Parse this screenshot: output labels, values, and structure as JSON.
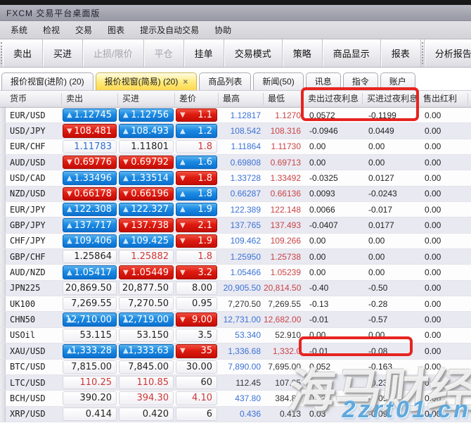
{
  "window": {
    "title": "FXCM 交易平台桌面版"
  },
  "menu": {
    "items": [
      "系统",
      "检视",
      "交易",
      "图表",
      "提示及自动交易",
      "协助"
    ]
  },
  "toolbar": {
    "buttons": [
      {
        "label": "卖出",
        "enabled": true
      },
      {
        "label": "买进",
        "enabled": true
      },
      {
        "label": "止损/限价",
        "enabled": false
      },
      {
        "label": "平仓",
        "enabled": false
      },
      {
        "label": "挂单",
        "enabled": true
      },
      {
        "label": "交易模式",
        "enabled": true
      },
      {
        "label": "策略",
        "enabled": true
      },
      {
        "label": "商品显示",
        "enabled": true
      },
      {
        "label": "报表",
        "enabled": true
      }
    ],
    "detached_button": {
      "label": "分析报告",
      "enabled": true
    }
  },
  "tabs": [
    {
      "label": "报价视窗(进阶) (20)",
      "active": false,
      "closable": false
    },
    {
      "label": "报价视窗(简易) (20)",
      "active": true,
      "closable": true
    },
    {
      "label": "商品列表",
      "active": false,
      "closable": false
    },
    {
      "label": "新闻(50)",
      "active": false,
      "closable": false
    },
    {
      "label": "讯息",
      "active": false,
      "closable": false
    },
    {
      "label": "指令",
      "active": false,
      "closable": false
    },
    {
      "label": "账户",
      "active": false,
      "closable": false
    }
  ],
  "close_icon": "×",
  "arrows": {
    "up": "▲",
    "down": "▼"
  },
  "table": {
    "columns": [
      "货币",
      "卖出",
      "买进",
      "差价",
      "最高",
      "最低",
      "卖出过夜利息",
      "买进过夜利息",
      "售出红利"
    ],
    "rows": [
      {
        "symbol": "EUR/USD",
        "sell": "1.12745",
        "sell_state": "up",
        "buy": "1.12756",
        "buy_state": "up",
        "spread": "1.1",
        "spread_state": "down",
        "high": "1.12817",
        "high_color": "blue",
        "low": "1.1270",
        "low_color": "red",
        "sell_roll": "0.0572",
        "buy_roll": "-0.1199",
        "dividend": "0.00"
      },
      {
        "symbol": "USD/JPY",
        "sell": "108.481",
        "sell_state": "down",
        "buy": "108.493",
        "buy_state": "up",
        "spread": "1.2",
        "spread_state": "up",
        "high": "108.542",
        "high_color": "blue",
        "low": "108.316",
        "low_color": "red",
        "sell_roll": "-0.0946",
        "buy_roll": "0.0449",
        "dividend": "0.00"
      },
      {
        "symbol": "EUR/CHF",
        "sell": "1.11783",
        "sell_state": "flat-blue",
        "buy": "1.11801",
        "buy_state": "flat-black",
        "spread": "1.8",
        "spread_state": "flat-red",
        "high": "1.11864",
        "high_color": "blue",
        "low": "1.11730",
        "low_color": "red",
        "sell_roll": "0.00",
        "buy_roll": "0.00",
        "dividend": "0.00"
      },
      {
        "symbol": "AUD/USD",
        "sell": "0.69776",
        "sell_state": "down",
        "buy": "0.69792",
        "buy_state": "down",
        "spread": "1.6",
        "spread_state": "up",
        "high": "0.69808",
        "high_color": "blue",
        "low": "0.69713",
        "low_color": "red",
        "sell_roll": "0.00",
        "buy_roll": "0.00",
        "dividend": "0.00"
      },
      {
        "symbol": "USD/CAD",
        "sell": "1.33496",
        "sell_state": "up",
        "buy": "1.33514",
        "buy_state": "up",
        "spread": "1.8",
        "spread_state": "down",
        "high": "1.33728",
        "high_color": "blue",
        "low": "1.33492",
        "low_color": "red",
        "sell_roll": "-0.0325",
        "buy_roll": "0.0127",
        "dividend": "0.00"
      },
      {
        "symbol": "NZD/USD",
        "sell": "0.66178",
        "sell_state": "down",
        "buy": "0.66196",
        "buy_state": "down",
        "spread": "1.8",
        "spread_state": "up",
        "high": "0.66287",
        "high_color": "blue",
        "low": "0.66136",
        "low_color": "red",
        "sell_roll": "0.0093",
        "buy_roll": "-0.0243",
        "dividend": "0.00"
      },
      {
        "symbol": "EUR/JPY",
        "sell": "122.308",
        "sell_state": "up",
        "buy": "122.327",
        "buy_state": "up",
        "spread": "1.9",
        "spread_state": "up",
        "high": "122.389",
        "high_color": "blue",
        "low": "122.148",
        "low_color": "red",
        "sell_roll": "0.0066",
        "buy_roll": "-0.017",
        "dividend": "0.00"
      },
      {
        "symbol": "GBP/JPY",
        "sell": "137.717",
        "sell_state": "up",
        "buy": "137.738",
        "buy_state": "down",
        "spread": "2.1",
        "spread_state": "down",
        "high": "137.765",
        "high_color": "blue",
        "low": "137.493",
        "low_color": "red",
        "sell_roll": "-0.0407",
        "buy_roll": "0.0177",
        "dividend": "0.00"
      },
      {
        "symbol": "CHF/JPY",
        "sell": "109.406",
        "sell_state": "up",
        "buy": "109.425",
        "buy_state": "up",
        "spread": "1.9",
        "spread_state": "down",
        "high": "109.462",
        "high_color": "blue",
        "low": "109.266",
        "low_color": "red",
        "sell_roll": "0.00",
        "buy_roll": "0.00",
        "dividend": "0.00"
      },
      {
        "symbol": "GBP/CHF",
        "sell": "1.25864",
        "sell_state": "flat-black",
        "buy": "1.25882",
        "buy_state": "flat-red",
        "spread": "1.8",
        "spread_state": "flat-red",
        "high": "1.25950",
        "high_color": "blue",
        "low": "1.25738",
        "low_color": "red",
        "sell_roll": "0.00",
        "buy_roll": "0.00",
        "dividend": "0.00"
      },
      {
        "symbol": "AUD/NZD",
        "sell": "1.05417",
        "sell_state": "up",
        "buy": "1.05449",
        "buy_state": "down",
        "spread": "3.2",
        "spread_state": "down",
        "high": "1.05466",
        "high_color": "blue",
        "low": "1.05239",
        "low_color": "red",
        "sell_roll": "0.00",
        "buy_roll": "0.00",
        "dividend": "0.00"
      },
      {
        "symbol": "JPN225",
        "sell": "20,869.50",
        "sell_state": "flat-black",
        "buy": "20,877.50",
        "buy_state": "flat-black",
        "spread": "8.00",
        "spread_state": "flat-black",
        "high": "20,905.50",
        "high_color": "blue",
        "low": "20,814.50",
        "low_color": "red",
        "sell_roll": "-0.40",
        "buy_roll": "-0.50",
        "dividend": "0.00"
      },
      {
        "symbol": "UK100",
        "sell": "7,269.55",
        "sell_state": "flat-black",
        "buy": "7,270.50",
        "buy_state": "flat-black",
        "spread": "0.95",
        "spread_state": "flat-black",
        "high": "7,270.50",
        "high_color": "black",
        "low": "7,269.55",
        "low_color": "black",
        "sell_roll": "-0.13",
        "buy_roll": "-0.28",
        "dividend": "0.00"
      },
      {
        "symbol": "CHN50",
        "sell": "12,710.00",
        "sell_state": "up",
        "buy": "12,719.00",
        "buy_state": "up",
        "spread": "9.00",
        "spread_state": "down",
        "high": "12,731.00",
        "high_color": "blue",
        "low": "12,682.00",
        "low_color": "red",
        "sell_roll": "-0.01",
        "buy_roll": "-0.57",
        "dividend": "0.00"
      },
      {
        "symbol": "USOil",
        "sell": "53.115",
        "sell_state": "flat-black",
        "buy": "53.150",
        "buy_state": "flat-black",
        "spread": "3.5",
        "spread_state": "flat-black",
        "high": "53.340",
        "high_color": "blue",
        "low": "52.910",
        "low_color": "black",
        "sell_roll": "0.00",
        "buy_roll": "0.00",
        "dividend": "0.00"
      },
      {
        "symbol": "XAU/USD",
        "sell": "1,333.28",
        "sell_state": "up",
        "buy": "1,333.63",
        "buy_state": "up",
        "spread": "35",
        "spread_state": "down",
        "high": "1,336.68",
        "high_color": "blue",
        "low": "1,332.0",
        "low_color": "red",
        "sell_roll": "-0.01",
        "buy_roll": "-0.08",
        "dividend": "0.00"
      },
      {
        "symbol": "BTC/USD",
        "sell": "7,815.00",
        "sell_state": "flat-black",
        "buy": "7,845.00",
        "buy_state": "flat-black",
        "spread": "30.00",
        "spread_state": "flat-black",
        "high": "7,890.00",
        "high_color": "blue",
        "low": "7,695.00",
        "low_color": "black",
        "sell_roll": "0.052",
        "buy_roll": "-0.163",
        "dividend": "0.00"
      },
      {
        "symbol": "LTC/USD",
        "sell": "110.25",
        "sell_state": "flat-red",
        "buy": "110.85",
        "buy_state": "flat-red",
        "spread": "60",
        "spread_state": "flat-black",
        "high": "112.45",
        "high_color": "black",
        "low": "107.85",
        "low_color": "black",
        "sell_roll": "0.073",
        "buy_roll": "-0.23",
        "dividend": "0.00"
      },
      {
        "symbol": "BCH/USD",
        "sell": "390.20",
        "sell_state": "flat-black",
        "buy": "394.30",
        "buy_state": "flat-red",
        "spread": "4.10",
        "spread_state": "flat-red",
        "high": "437.80",
        "high_color": "blue",
        "low": "384.80",
        "low_color": "black",
        "sell_roll": "0.026",
        "buy_roll": "-0.092",
        "dividend": "0.00"
      },
      {
        "symbol": "XRP/USD",
        "sell": "0.414",
        "sell_state": "flat-black",
        "buy": "0.420",
        "buy_state": "flat-black",
        "spread": "6",
        "spread_state": "flat-black",
        "high": "0.436",
        "high_color": "blue",
        "low": "0.413",
        "low_color": "black",
        "sell_roll": "0.03",
        "buy_roll": "-0.09",
        "dividend": "0.00"
      }
    ]
  },
  "colors": {
    "up_cell": "#1b8ae2",
    "down_cell": "#dd1b10",
    "active_tab": "#ffe97a",
    "annotation_red": "#e62420",
    "high_text": "#3a72d4",
    "low_text": "#c94444",
    "watermark_blue": "#5fa8dc"
  },
  "watermark": {
    "brand": "海马财经",
    "site": "2zrt01.cn"
  }
}
